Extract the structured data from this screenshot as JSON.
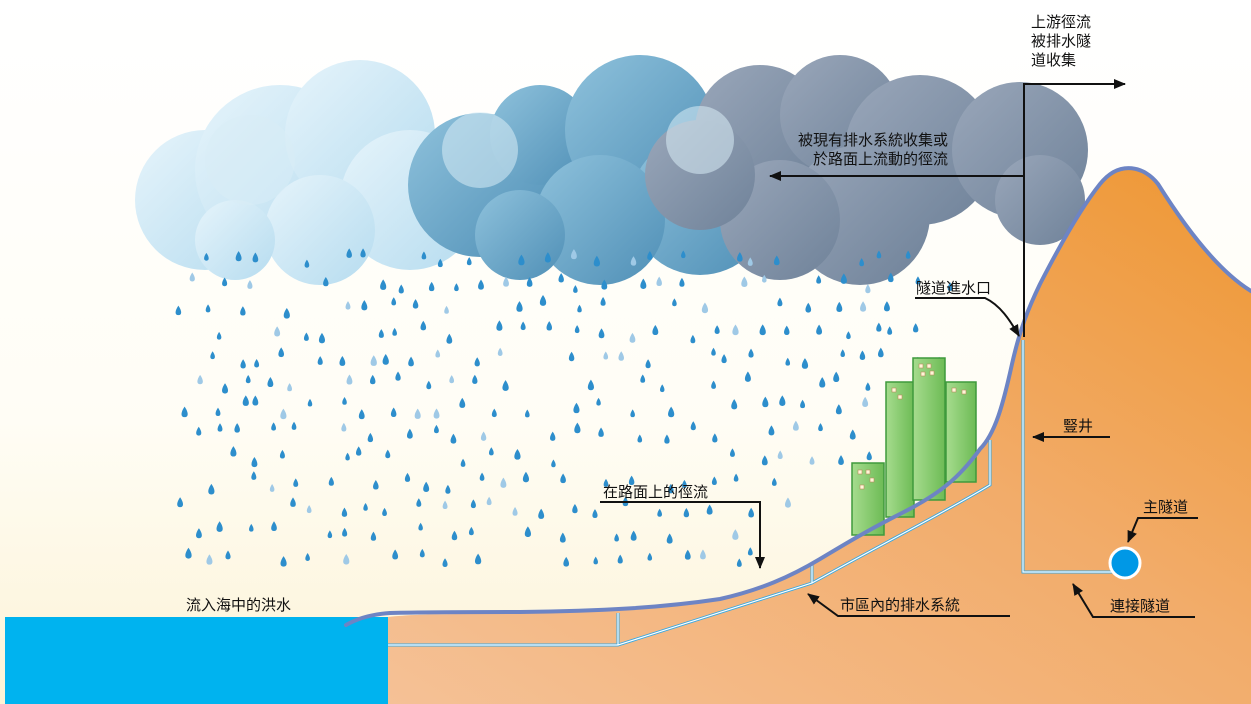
{
  "diagram": {
    "labels": {
      "upstream": [
        "上游徑流",
        "被排水隧",
        "道收集"
      ],
      "existing": [
        "被現有排水系統收集或",
        "於路面上流動的徑流"
      ],
      "intake": "隧道進水口",
      "shaft": "豎井",
      "main_tunnel": "主隧道",
      "connection_tunnel": "連接隧道",
      "road_runoff": "在路面上的徑流",
      "urban_drainage": "市區內的排水系統",
      "sea_flow": "流入海中的洪水"
    },
    "colors": {
      "sky_top": "#ffffff",
      "sky_bottom": "#fdf6dc",
      "hill_light": "#f3b57c",
      "hill_dark": "#ef9a3a",
      "hill_outline": "#6d84c4",
      "sea": "#00b3ef",
      "pipe": "#3aa8e0",
      "building": "#86cc6e",
      "building_edge": "#3f9a3c",
      "rain": "#2d8ecc",
      "cloud_light": "#cfe9f7",
      "cloud_mid": "#5f9ec2",
      "cloud_dark": "#7c8ea8",
      "text": "#111111"
    }
  }
}
